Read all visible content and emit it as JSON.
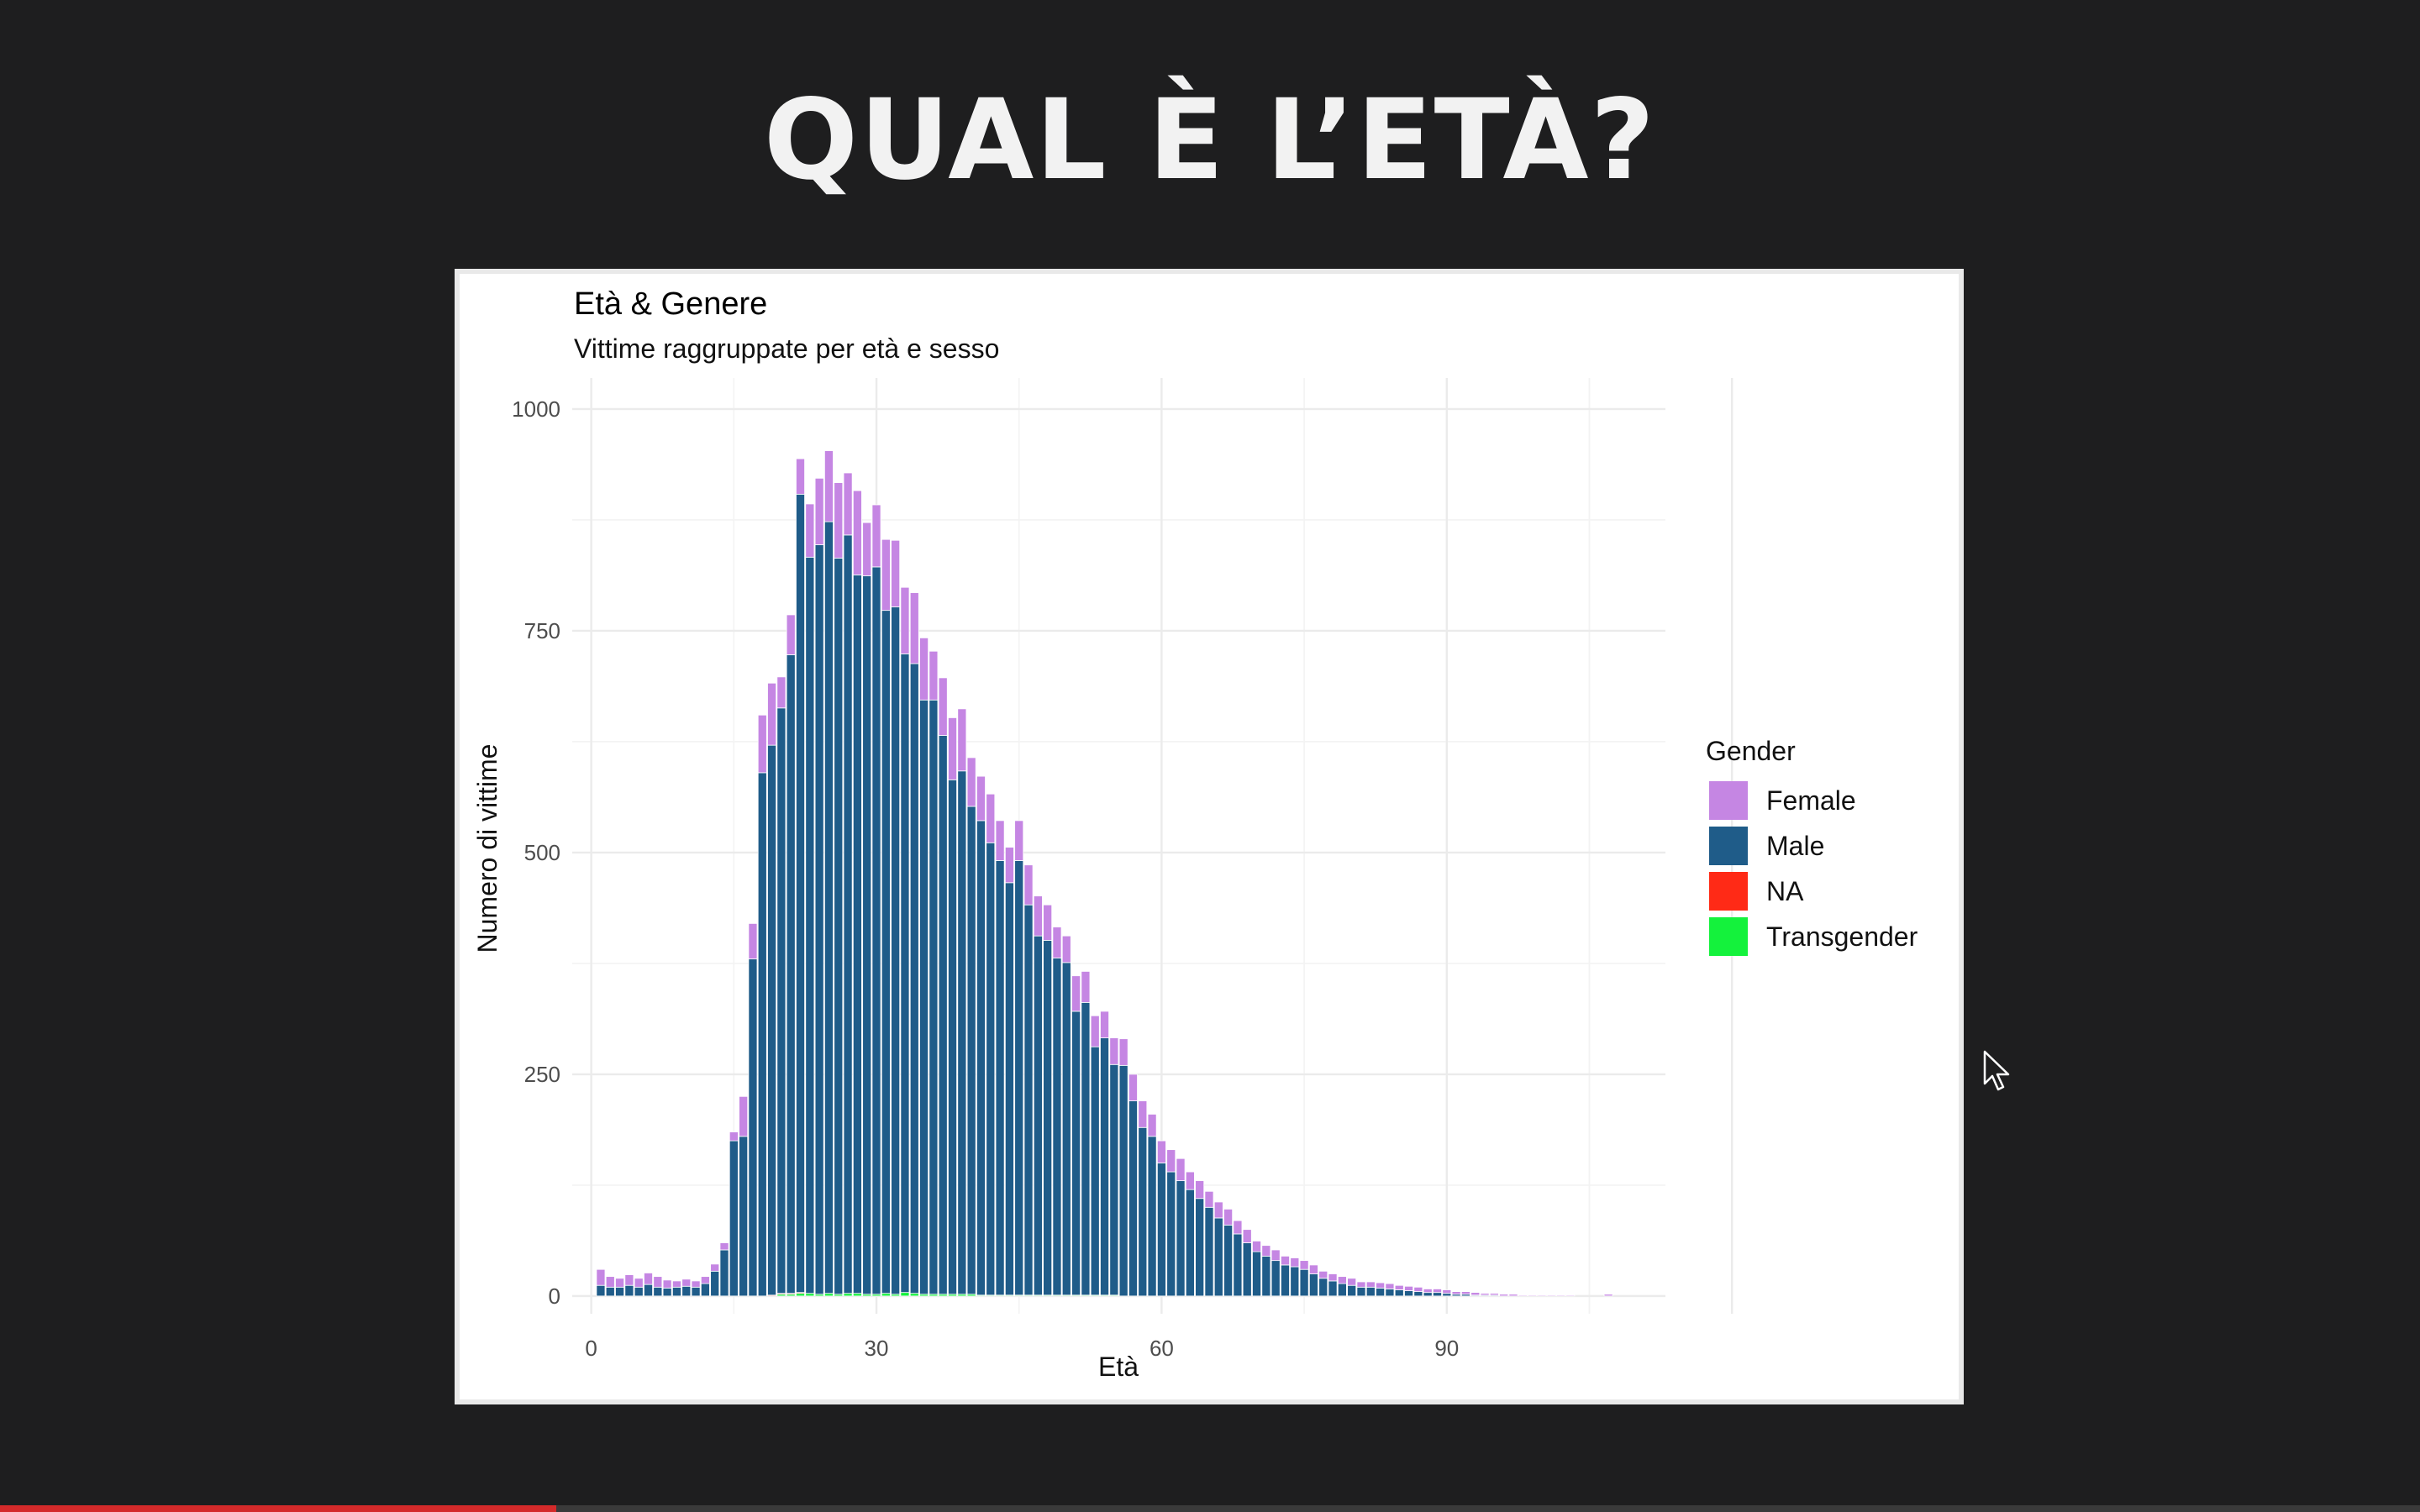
{
  "slide": {
    "title": "QUAL È L’ETÀ?"
  },
  "video": {
    "progress_fraction": 0.23,
    "progress_color": "#d42a2a"
  },
  "cursor": {
    "icon": "mouse-pointer-icon"
  },
  "chart_data": {
    "type": "bar",
    "stacked": true,
    "title": "Età & Genere",
    "subtitle": "Vittime raggruppate per età e sesso",
    "xlabel": "Età",
    "ylabel": "Numero di vittime",
    "xlim": [
      -2,
      113
    ],
    "ylim": [
      -20,
      1035
    ],
    "xticks": [
      0,
      30,
      60,
      90
    ],
    "yticks": [
      0,
      250,
      500,
      750,
      1000
    ],
    "grid": true,
    "legend": {
      "title": "Gender",
      "position": "right"
    },
    "x": [
      1,
      2,
      3,
      4,
      5,
      6,
      7,
      8,
      9,
      10,
      11,
      12,
      13,
      14,
      15,
      16,
      17,
      18,
      19,
      20,
      21,
      22,
      23,
      24,
      25,
      26,
      27,
      28,
      29,
      30,
      31,
      32,
      33,
      34,
      35,
      36,
      37,
      38,
      39,
      40,
      41,
      42,
      43,
      44,
      45,
      46,
      47,
      48,
      49,
      50,
      51,
      52,
      53,
      54,
      55,
      56,
      57,
      58,
      59,
      60,
      61,
      62,
      63,
      64,
      65,
      66,
      67,
      68,
      69,
      70,
      71,
      72,
      73,
      74,
      75,
      76,
      77,
      78,
      79,
      80,
      81,
      82,
      83,
      84,
      85,
      86,
      87,
      88,
      89,
      90,
      91,
      92,
      93,
      94,
      95,
      96,
      97,
      98,
      99,
      100,
      101,
      102,
      103,
      104,
      105,
      106,
      107
    ],
    "series": [
      {
        "name": "Female",
        "color": "#c586e3",
        "values": [
          18,
          12,
          10,
          12,
          10,
          13,
          12,
          9,
          7,
          8,
          7,
          8,
          8,
          8,
          10,
          45,
          40,
          65,
          70,
          35,
          45,
          40,
          60,
          75,
          80,
          85,
          70,
          95,
          60,
          70,
          80,
          75,
          75,
          80,
          70,
          55,
          65,
          70,
          70,
          55,
          50,
          55,
          45,
          40,
          45,
          45,
          45,
          40,
          35,
          30,
          40,
          35,
          35,
          30,
          30,
          30,
          30,
          30,
          25,
          25,
          25,
          25,
          20,
          20,
          18,
          18,
          18,
          15,
          15,
          12,
          12,
          12,
          10,
          10,
          10,
          10,
          8,
          8,
          8,
          8,
          6,
          6,
          6,
          6,
          5,
          5,
          5,
          4,
          4,
          4,
          3,
          3,
          3,
          2,
          2,
          2,
          2,
          1,
          1,
          1,
          1,
          1,
          1,
          0,
          0,
          0,
          2
        ]
      },
      {
        "name": "Male",
        "color": "#1f5c89",
        "values": [
          12,
          10,
          10,
          12,
          10,
          13,
          10,
          9,
          10,
          11,
          10,
          14,
          28,
          52,
          175,
          180,
          380,
          590,
          620,
          660,
          720,
          900,
          830,
          845,
          870,
          830,
          855,
          810,
          810,
          820,
          770,
          775,
          720,
          710,
          670,
          670,
          630,
          580,
          590,
          550,
          535,
          510,
          490,
          465,
          490,
          440,
          405,
          400,
          380,
          375,
          320,
          330,
          280,
          290,
          260,
          260,
          220,
          190,
          180,
          150,
          140,
          130,
          120,
          110,
          100,
          88,
          80,
          70,
          60,
          50,
          45,
          40,
          35,
          33,
          30,
          25,
          20,
          17,
          14,
          12,
          10,
          10,
          9,
          8,
          7,
          6,
          5,
          4,
          4,
          3,
          2,
          2,
          1,
          1,
          1,
          0,
          0,
          0,
          0,
          0,
          0,
          0,
          0,
          0,
          0,
          0,
          0
        ]
      },
      {
        "name": "NA",
        "color": "#ff2a16",
        "values": [
          0,
          0,
          0,
          0,
          0,
          0,
          0,
          0,
          0,
          0,
          0,
          0,
          0,
          0,
          0,
          0,
          0,
          0,
          1,
          1,
          1,
          1,
          0,
          0,
          0,
          0,
          0,
          0,
          0,
          0,
          0,
          0,
          0,
          0,
          0,
          0,
          0,
          0,
          0,
          0,
          0,
          0,
          0,
          0,
          0,
          0,
          0,
          0,
          0,
          0,
          0,
          0,
          0,
          0,
          0,
          0,
          0,
          0,
          0,
          0,
          0,
          0,
          0,
          0,
          0,
          0,
          0,
          0,
          0,
          0,
          0,
          0,
          0,
          0,
          0,
          0,
          0,
          0,
          0,
          0,
          0,
          0,
          0,
          0,
          0,
          0,
          0,
          0,
          0,
          0,
          0,
          0,
          0,
          0,
          0,
          0,
          0,
          0,
          0,
          0,
          0,
          0,
          0,
          0,
          0,
          0,
          0
        ]
      },
      {
        "name": "Transgender",
        "color": "#14f23c",
        "values": [
          0,
          0,
          0,
          0,
          0,
          0,
          0,
          0,
          0,
          0,
          0,
          0,
          0,
          0,
          0,
          0,
          0,
          0,
          0,
          2,
          2,
          3,
          3,
          2,
          3,
          2,
          3,
          3,
          2,
          2,
          3,
          2,
          4,
          3,
          2,
          2,
          2,
          2,
          2,
          2,
          1,
          1,
          1,
          1,
          1,
          1,
          1,
          1,
          1,
          1,
          1,
          1,
          1,
          1,
          1,
          0,
          0,
          0,
          0,
          0,
          0,
          0,
          0,
          0,
          0,
          0,
          0,
          0,
          0,
          0,
          0,
          0,
          0,
          0,
          0,
          0,
          0,
          0,
          0,
          0,
          0,
          0,
          0,
          0,
          0,
          0,
          0,
          0,
          0,
          0,
          0,
          0,
          0,
          0,
          0,
          0,
          0,
          0,
          0,
          0,
          0,
          0,
          0,
          0,
          0,
          0,
          0
        ]
      }
    ]
  }
}
